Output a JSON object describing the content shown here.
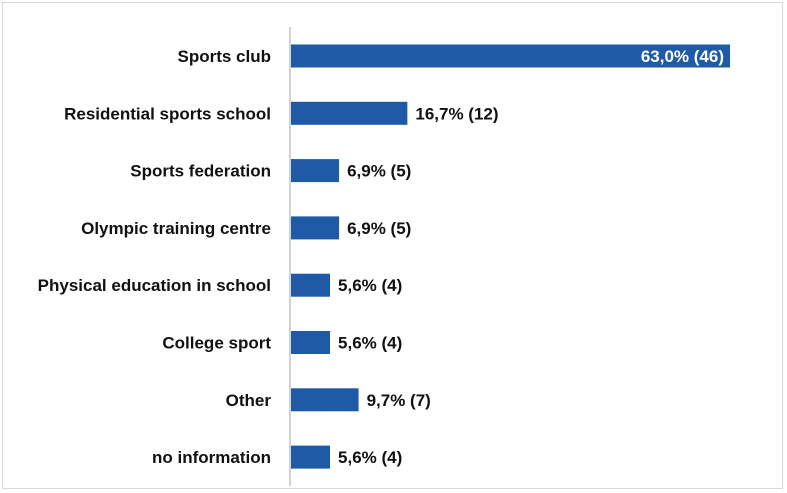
{
  "chart_data": {
    "type": "bar",
    "orientation": "horizontal",
    "categories": [
      "Sports club",
      "Residential sports school",
      "Sports federation",
      "Olympic training centre",
      "Physical education in school",
      "College sport",
      "Other",
      "no information"
    ],
    "values": [
      63.0,
      16.7,
      6.9,
      6.9,
      5.6,
      5.6,
      9.7,
      5.6
    ],
    "counts": [
      46,
      12,
      5,
      5,
      4,
      4,
      7,
      4
    ],
    "data_labels": [
      "63,0% (46)",
      "16,7% (12)",
      "6,9% (5)",
      "6,9% (5)",
      "5,6% (4)",
      "5,6% (4)",
      "9,7% (7)",
      "5,6% (4)"
    ],
    "xlim": [
      0,
      63.0
    ],
    "grid": false,
    "legend": "none",
    "bar_color": "#1f5aa6",
    "title": "",
    "xlabel": "",
    "ylabel": ""
  }
}
